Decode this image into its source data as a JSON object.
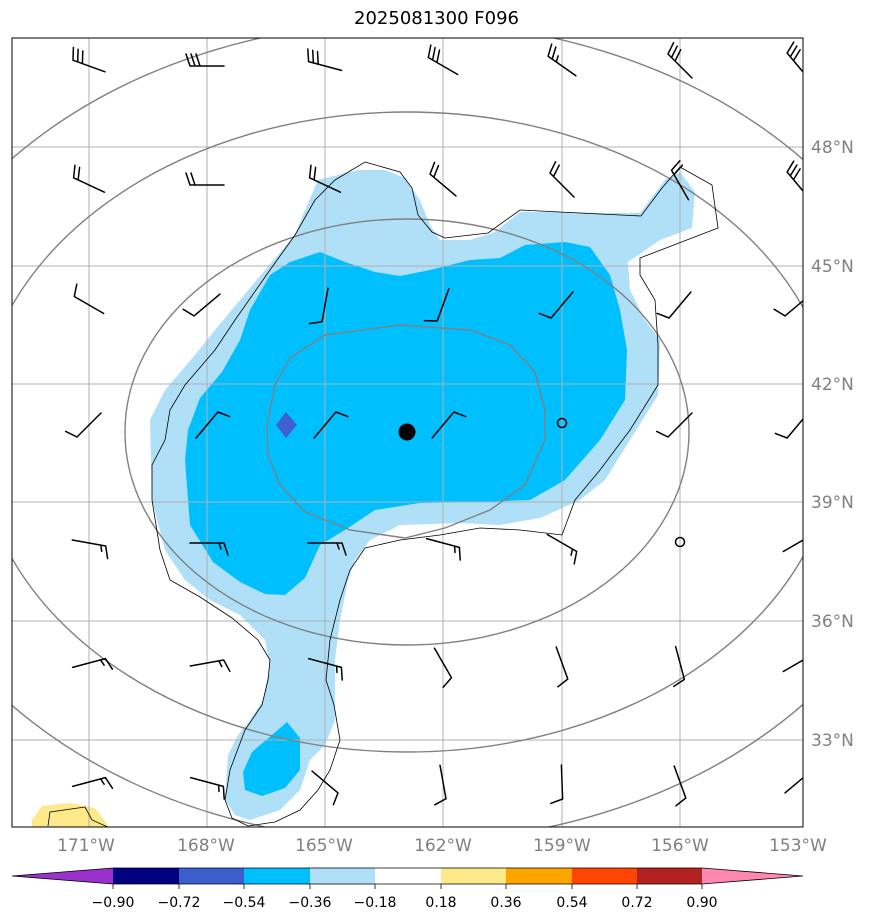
{
  "title": "2025081300 F096",
  "map": {
    "lon_labels": [
      "171°W",
      "168°W",
      "165°W",
      "162°W",
      "159°W",
      "156°W",
      "153°W"
    ],
    "lat_labels": [
      "48°N",
      "45°N",
      "42°N",
      "39°N",
      "36°N",
      "33°N"
    ],
    "label_color": "#808080",
    "grid_color": "#b0b0b0",
    "contour_color": "#808080",
    "coast_color": "#000000"
  },
  "field": {
    "fill_light": "#b0e0f8",
    "fill_mid": "#00bfff",
    "fill_dark": "#4060d0",
    "fill_yellow": "#fde98a",
    "center_marker": "filled-circle",
    "calm_marker": "open-circle"
  },
  "colorbar": {
    "tick_labels": [
      "−0.90",
      "−0.72",
      "−0.54",
      "−0.36",
      "−0.18",
      "0.18",
      "0.36",
      "0.54",
      "0.72",
      "0.90"
    ],
    "colors": [
      "#9932cc",
      "#000080",
      "#00008b",
      "#3a5fcd",
      "#00bfff",
      "#b0e0f8",
      "#ffffff",
      "#fde98a",
      "#ffa500",
      "#ff4500",
      "#b22222",
      "#ff88b0"
    ]
  }
}
